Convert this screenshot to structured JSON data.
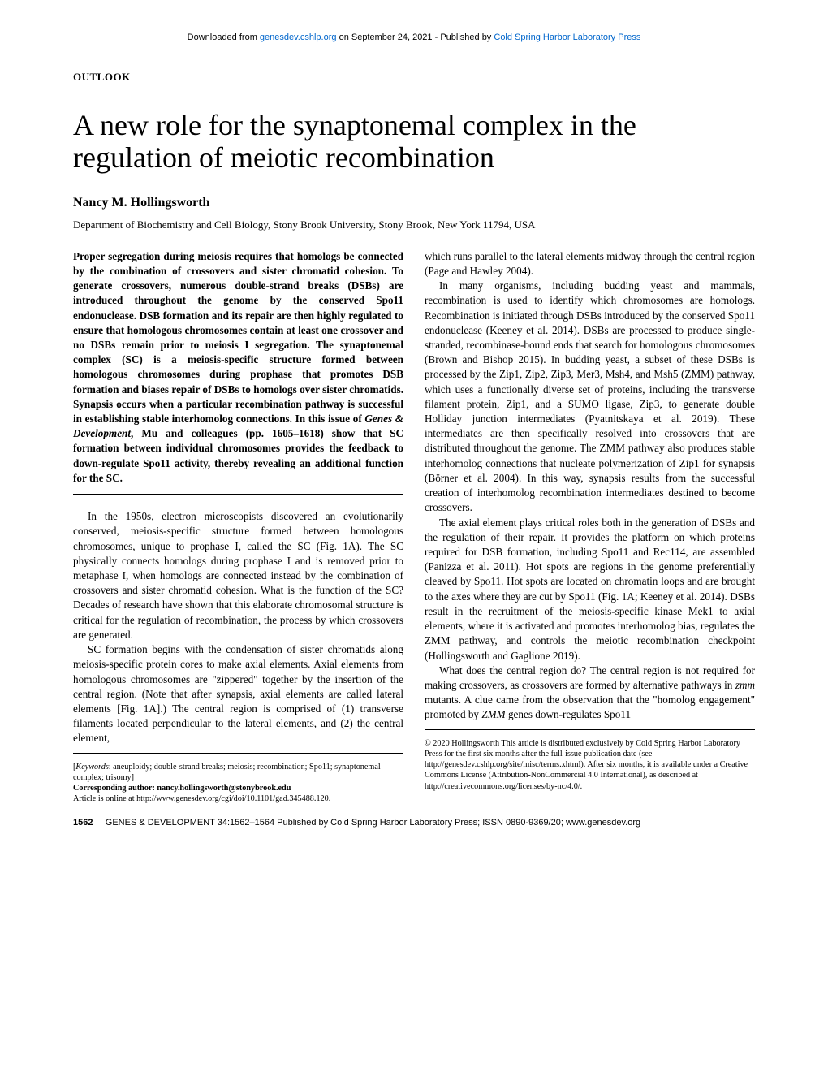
{
  "download_bar": {
    "prefix": "Downloaded from ",
    "link1": "genesdev.cshlp.org",
    "mid": " on September 24, 2021 - Published by ",
    "link2": "Cold Spring Harbor Laboratory Press"
  },
  "section_label": "OUTLOOK",
  "title": "A new role for the synaptonemal complex in the regulation of meiotic recombination",
  "author": "Nancy M. Hollingsworth",
  "affiliation": "Department of Biochemistry and Cell Biology, Stony Brook University, Stony Brook, New York 11794, USA",
  "abstract_parts": {
    "p1": "Proper segregation during meiosis requires that homologs be connected by the combination of crossovers and sister chromatid cohesion. To generate crossovers, numerous double-strand breaks (DSBs) are introduced throughout the genome by the conserved Spo11 endonuclease. DSB formation and its repair are then highly regulated to ensure that homologous chromosomes contain at least one crossover and no DSBs remain prior to meiosis I segregation. The synaptonemal complex (SC) is a meiosis-specific structure formed between homologous chromosomes during prophase that promotes DSB formation and biases repair of DSBs to homologs over sister chromatids. Synapsis occurs when a particular recombination pathway is successful in establishing stable interhomolog connections. In this issue of ",
    "ital1": "Genes & Development",
    "p2": ", Mu and colleagues (pp. 1605–1618) show that SC formation between individual chromosomes provides the feedback to down-regulate Spo11 activity, thereby revealing an additional function for the SC."
  },
  "left_body": {
    "p1": "In the 1950s, electron microscopists discovered an evolutionarily conserved, meiosis-specific structure formed between homologous chromosomes, unique to prophase I, called the SC (Fig. 1A). The SC physically connects homologs during prophase I and is removed prior to metaphase I, when homologs are connected instead by the combination of crossovers and sister chromatid cohesion. What is the function of the SC? Decades of research have shown that this elaborate chromosomal structure is critical for the regulation of recombination, the process by which crossovers are generated.",
    "p2": "SC formation begins with the condensation of sister chromatids along meiosis-specific protein cores to make axial elements. Axial elements from homologous chromosomes are \"zippered\" together by the insertion of the central region. (Note that after synapsis, axial elements are called lateral elements [Fig. 1A].) The central region is comprised of (1) transverse filaments located perpendicular to the lateral elements, and (2) the central element,"
  },
  "right_body": {
    "p1": "which runs parallel to the lateral elements midway through the central region (Page and Hawley 2004).",
    "p2": "In many organisms, including budding yeast and mammals, recombination is used to identify which chromosomes are homologs. Recombination is initiated through DSBs introduced by the conserved Spo11 endonuclease (Keeney et al. 2014). DSBs are processed to produce single-stranded, recombinase-bound ends that search for homologous chromosomes (Brown and Bishop 2015). In budding yeast, a subset of these DSBs is processed by the Zip1, Zip2, Zip3, Mer3, Msh4, and Msh5 (ZMM) pathway, which uses a functionally diverse set of proteins, including the transverse filament protein, Zip1, and a SUMO ligase, Zip3, to generate double Holliday junction intermediates (Pyatnitskaya et al. 2019). These intermediates are then specifically resolved into crossovers that are distributed throughout the genome. The ZMM pathway also produces stable interhomolog connections that nucleate polymerization of Zip1 for synapsis (Börner et al. 2004). In this way, synapsis results from the successful creation of interhomolog recombination intermediates destined to become crossovers.",
    "p3": "The axial element plays critical roles both in the generation of DSBs and the regulation of their repair. It provides the platform on which proteins required for DSB formation, including Spo11 and Rec114, are assembled (Panizza et al. 2011). Hot spots are regions in the genome preferentially cleaved by Spo11. Hot spots are located on chromatin loops and are brought to the axes where they are cut by Spo11 (Fig. 1A; Keeney et al. 2014). DSBs result in the recruitment of the meiosis-specific kinase Mek1 to axial elements, where it is activated and promotes interhomolog bias, regulates the ZMM pathway, and controls the meiotic recombination checkpoint (Hollingsworth and Gaglione 2019).",
    "p4a": "What does the central region do? The central region is not required for making crossovers, as crossovers are formed by alternative pathways in ",
    "ital1": "zmm",
    "p4b": " mutants. A clue came from the observation that the \"homolog engagement\" promoted by ",
    "ital2": "ZMM",
    "p4c": " genes down-regulates Spo11"
  },
  "footnotes_left": {
    "keywords_label": "Keywords",
    "keywords": ": aneuploidy; double-strand breaks; meiosis; recombination; Spo11; synaptonemal complex; trisomy]",
    "corr_label": "Corresponding author: ",
    "corr_email": "nancy.hollingsworth@stonybrook.edu",
    "online": "Article is online at http://www.genesdev.org/cgi/doi/10.1101/gad.345488.120."
  },
  "footnotes_right": {
    "text": "© 2020 Hollingsworth   This article is distributed exclusively by Cold Spring Harbor Laboratory Press for the first six months after the full-issue publication date (see http://genesdev.cshlp.org/site/misc/terms.xhtml). After six months, it is available under a Creative Commons License (Attribution-NonCommercial 4.0 International), as described at http://creativecommons.org/licenses/by-nc/4.0/."
  },
  "footer": {
    "page": "1562",
    "rest": "GENES & DEVELOPMENT 34:1562–1564 Published by Cold Spring Harbor Laboratory Press; ISSN 0890-9369/20; www.genesdev.org"
  }
}
